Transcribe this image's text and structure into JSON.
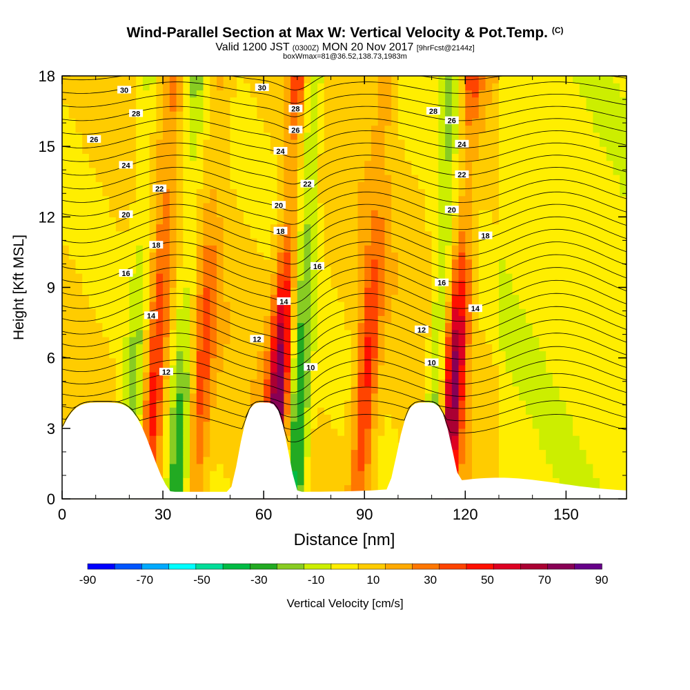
{
  "chart_data": {
    "type": "heatmap",
    "title": "Wind-Parallel Section at Max W: Vertical Velocity & Pot.Temp.",
    "title_mark": "(C)",
    "subtitle": {
      "valid": "Valid 1200 JST",
      "zulu": "(0300Z)",
      "date": "MON 20 Nov 2017",
      "fcst": "[9hrFcst@2144z]"
    },
    "subtitle2": "boxWmax=81@36.52,138.73,1983m",
    "xlabel": "Distance [nm]",
    "ylabel": "Height [Kft MSL]",
    "xlim": [
      0,
      168
    ],
    "ylim": [
      0,
      18
    ],
    "x_ticks": [
      0,
      30,
      60,
      90,
      120,
      150
    ],
    "y_ticks": [
      0,
      3,
      6,
      9,
      12,
      15,
      18
    ],
    "grid": false,
    "colorbar": {
      "label": "Vertical Velocity [cm/s]",
      "tick_labels": [
        -90,
        -70,
        -50,
        -30,
        -10,
        10,
        30,
        50,
        70,
        90
      ],
      "colors": [
        "#0000ff",
        "#0055ff",
        "#00aaff",
        "#00ffff",
        "#00dd99",
        "#00bb44",
        "#22aa22",
        "#88cc22",
        "#ccee00",
        "#ffee00",
        "#ffcc00",
        "#ffaa00",
        "#ff7700",
        "#ff4400",
        "#ff1100",
        "#dd0022",
        "#aa0033",
        "#880055",
        "#660088"
      ]
    },
    "updraft_columns": [
      {
        "x": 28,
        "w": 45,
        "kind": "up"
      },
      {
        "x": 42,
        "w": 30,
        "kind": "up"
      },
      {
        "x": 65,
        "w": 70,
        "kind": "up"
      },
      {
        "x": 91,
        "w": 40,
        "kind": "up"
      },
      {
        "x": 117,
        "w": 65,
        "kind": "up"
      },
      {
        "x": 22,
        "w": -30,
        "kind": "down"
      },
      {
        "x": 36,
        "w": -35,
        "kind": "down"
      },
      {
        "x": 71,
        "w": -50,
        "kind": "down"
      },
      {
        "x": 112,
        "w": -40,
        "kind": "down"
      }
    ],
    "theta_labels": [
      {
        "x": 18.5,
        "y": 17.4,
        "text": "30"
      },
      {
        "x": 59.5,
        "y": 17.5,
        "text": "30"
      },
      {
        "x": 22,
        "y": 16.4,
        "text": "28"
      },
      {
        "x": 69.5,
        "y": 16.6,
        "text": "28"
      },
      {
        "x": 110.5,
        "y": 16.5,
        "text": "28"
      },
      {
        "x": 9.5,
        "y": 15.3,
        "text": "26"
      },
      {
        "x": 69.5,
        "y": 15.7,
        "text": "26"
      },
      {
        "x": 116,
        "y": 16.1,
        "text": "26"
      },
      {
        "x": 19,
        "y": 14.2,
        "text": "24"
      },
      {
        "x": 65,
        "y": 14.8,
        "text": "24"
      },
      {
        "x": 119,
        "y": 15.1,
        "text": "24"
      },
      {
        "x": 29,
        "y": 13.2,
        "text": "22"
      },
      {
        "x": 73,
        "y": 13.4,
        "text": "22"
      },
      {
        "x": 119,
        "y": 13.8,
        "text": "22"
      },
      {
        "x": 19,
        "y": 12.1,
        "text": "20"
      },
      {
        "x": 64.5,
        "y": 12.5,
        "text": "20"
      },
      {
        "x": 116,
        "y": 12.3,
        "text": "20"
      },
      {
        "x": 28,
        "y": 10.8,
        "text": "18"
      },
      {
        "x": 65,
        "y": 11.4,
        "text": "18"
      },
      {
        "x": 126,
        "y": 11.2,
        "text": "18"
      },
      {
        "x": 19,
        "y": 9.6,
        "text": "16"
      },
      {
        "x": 76,
        "y": 9.9,
        "text": "16"
      },
      {
        "x": 113,
        "y": 9.2,
        "text": "16"
      },
      {
        "x": 26.5,
        "y": 7.8,
        "text": "14"
      },
      {
        "x": 66,
        "y": 8.4,
        "text": "14"
      },
      {
        "x": 123,
        "y": 8.1,
        "text": "14"
      },
      {
        "x": 58,
        "y": 6.8,
        "text": "12"
      },
      {
        "x": 107,
        "y": 7.2,
        "text": "12"
      },
      {
        "x": 31,
        "y": 5.4,
        "text": "12"
      },
      {
        "x": 74,
        "y": 5.6,
        "text": "10"
      },
      {
        "x": 110,
        "y": 5.8,
        "text": "10"
      }
    ]
  }
}
